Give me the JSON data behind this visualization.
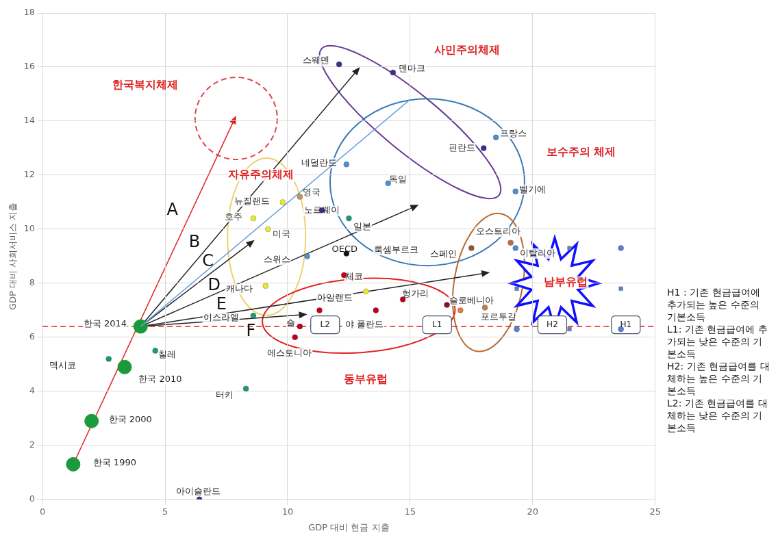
{
  "chart_data": {
    "type": "scatter",
    "xlabel": "GDP 대비 현금 지출",
    "ylabel": "GDP 대비 사회서비스 지출",
    "xlim": [
      0,
      25
    ],
    "xticks": [
      0,
      5,
      10,
      15,
      20,
      25
    ],
    "ylim": [
      0,
      18
    ],
    "yticks": [
      0,
      2,
      4,
      6,
      8,
      10,
      12,
      14,
      16,
      18
    ],
    "grid": true,
    "legend": false,
    "series": [
      {
        "type": "line",
        "color": "#6a9fd8",
        "x": [
          4.0,
          15.0
        ],
        "values": [
          6.4,
          14.8
        ],
        "marker": "none"
      },
      {
        "type": "bubble",
        "color": "#1a9a3a",
        "x": [
          1.25,
          2.0,
          3.35,
          4.0
        ],
        "values": [
          1.3,
          2.9,
          4.9,
          6.4
        ],
        "sizes": [
          1,
          1,
          1,
          1
        ]
      },
      {
        "marker": "circle",
        "x": [
          12.1,
          14.3,
          18.0,
          11.4,
          6.4,
          18.5,
          12.4,
          14.1,
          19.3,
          10.8,
          19.3,
          19.1,
          17.5,
          18.05,
          17.05,
          9.8,
          10.5,
          8.6,
          9.2,
          9.1,
          13.2,
          12.5,
          12.4,
          8.6,
          4.6,
          2.7,
          8.3,
          12.3,
          14.7,
          16.5,
          11.3,
          13.6,
          10.3,
          10.5
        ],
        "values": [
          16.1,
          15.8,
          13.0,
          10.7,
          0.0,
          13.4,
          12.4,
          11.7,
          11.4,
          9.0,
          9.3,
          9.5,
          9.3,
          7.1,
          7.0,
          11.0,
          11.2,
          10.4,
          10.0,
          7.9,
          7.7,
          10.4,
          9.1,
          6.8,
          5.5,
          5.2,
          4.1,
          8.3,
          7.4,
          7.2,
          7.0,
          7.0,
          6.0,
          6.4
        ],
        "colors": [
          "#3b2f8f",
          "#3b2f8f",
          "#3b2f8f",
          "#3b2f8f",
          "#3b2f8f",
          "#4f8fd0",
          "#4f8fd0",
          "#4f8fd0",
          "#4f8fd0",
          "#4f8fd0",
          "#4f8fd0",
          "#b87040",
          "#a05030",
          "#c08050",
          "#e08040",
          "#e8e832",
          "#d09050",
          "#e8e832",
          "#e8e832",
          "#e8e832",
          "#e8e832",
          "#1a9a7a",
          "#111111",
          "#1a9a7a",
          "#1a9a7a",
          "#1a9a7a",
          "#1a9a7a",
          "#c0001a",
          "#c0001a",
          "#8a1030",
          "#c0001a",
          "#c0001a",
          "#c0001a",
          "#c0001a"
        ]
      },
      {
        "marker": "square",
        "color": "#5b7fd0",
        "x": [
          21.5,
          19.35,
          23.6,
          21.5
        ],
        "values": [
          9.3,
          7.8,
          7.8,
          6.3
        ]
      },
      {
        "marker": "circle",
        "color": "#5b7fd0",
        "x": [
          23.6,
          19.35,
          23.6
        ],
        "values": [
          9.3,
          6.3,
          6.3
        ]
      }
    ],
    "ref_lines": [
      {
        "axis": "y",
        "value": 6.4,
        "color": "#e02020",
        "line_style": "dashed"
      }
    ],
    "annotations": [
      "스웨덴",
      "덴마크",
      "사민주의체제",
      "한국복지체제",
      "프랑스",
      "핀란드",
      "보수주의 체제",
      "네덜란드",
      "독일",
      "벨기에",
      "자유주의체제",
      "뉴질랜드",
      "영국",
      "호주",
      "노르웨이",
      "미국",
      "일본",
      "오스트리아",
      "OECD",
      "룩셈부르크",
      "스페인",
      "이탈리아",
      "스위스",
      "체코",
      "남부유럽",
      "캐나다",
      "아일랜드",
      "헝가리",
      "슬로베니아",
      "이스라엘",
      "포르투갈",
      "한국 2014",
      {
        "text": "슬",
        "x": 10.5,
        "y": 6.4
      },
      "야 폴란드",
      "칠레",
      "에스토니아",
      "멕시코",
      "한국 2010",
      "동부유럽",
      "터키",
      "한국 2000",
      "한국 1990",
      "아이슬란드",
      "L2",
      "L1",
      "H2",
      "H1",
      "A",
      "B",
      "C",
      "D",
      "E",
      "F",
      "H1 : 기존 현금급여에 추가되는 높은 수준의 기본소득",
      "L1: 기존 현금급여에 추가되는 낮은 수준의 기본소득",
      "H2: 기존 현금급여를 대체하는 높은 수준의 기본소득",
      "L2: 기존 현금급여를 대체하는 낮은 수준의 기본소득"
    ]
  }
}
